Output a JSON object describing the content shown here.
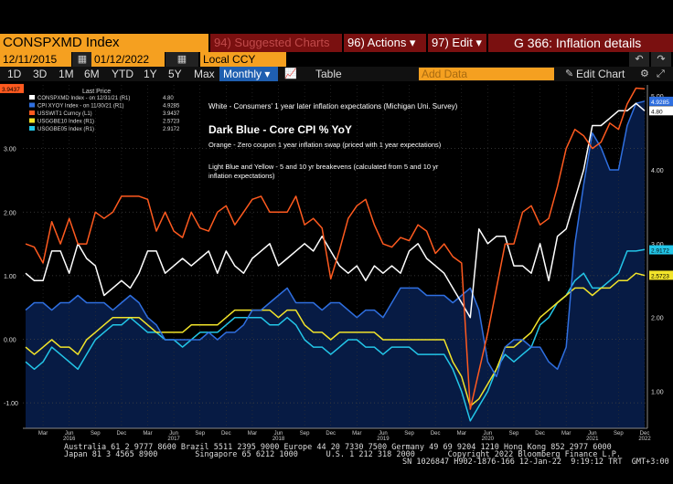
{
  "header": {
    "ticker": "CONSPXMD Index",
    "suggested": "94) Suggested Charts",
    "actions": "96) Actions ▾",
    "edit": "97) Edit ▾",
    "title": "G 366: Inflation details"
  },
  "toolbar": {
    "start_date": "12/11/2015",
    "end_date": "01/12/2022",
    "currency": "Local CCY",
    "ranges": [
      "1D",
      "3D",
      "1M",
      "6M",
      "YTD",
      "1Y",
      "5Y",
      "Max"
    ],
    "frequency": "Monthly ▾",
    "table_label": "Table",
    "add_data_placeholder": "Add Data",
    "edit_chart": "Edit Chart"
  },
  "legend": {
    "header": "Last Price",
    "entries": [
      {
        "name": "CONSPXMD Index - on 12/31/21 (R1)",
        "value": "4.80",
        "color": "#ffffff"
      },
      {
        "name": "CPI XYOY Index - on 11/30/21 (R1)",
        "value": "4.9285",
        "color": "#2f6fe0"
      },
      {
        "name": "USSWIT1 Curncy (L1)",
        "value": "3.9437",
        "color": "#ff5a1f"
      },
      {
        "name": "USGGBE10 Index (R1)",
        "value": "2.5723",
        "color": "#f2e42a"
      },
      {
        "name": "USGGBE05 Index (R1)",
        "value": "2.9172",
        "color": "#23c6e8"
      }
    ]
  },
  "annotations": {
    "white": "White - Consumers' 1 year later inflation expectations (Michigan Uni. Survey)",
    "darkblue": "Dark Blue - Core CPI % YoY",
    "orange": "Orange - Zero coupon 1 year inflation swap (priced with 1 year expectations)",
    "lightblue1": "Light Blue and Yellow - 5 and 10 yr breakevens (calculated from 5 and 10 yr",
    "lightblue2": "inflation expectations)"
  },
  "chart_data": {
    "type": "line",
    "left_axis": {
      "ylim": [
        -1.4,
        4.0
      ],
      "ticks": [
        -1.0,
        0.0,
        1.0,
        2.0,
        3.0
      ],
      "tick_labels": [
        "-1.00",
        "0.00",
        "1.00",
        "2.00",
        "3.00"
      ]
    },
    "right_axis": {
      "ylim": [
        0.5,
        5.15
      ],
      "ticks": [
        1.0,
        2.0,
        3.0,
        4.0,
        5.0
      ],
      "tick_labels": [
        "1.00",
        "2.00",
        "3.00",
        "4.00",
        "5.00"
      ]
    },
    "x_labels": [
      {
        "label": "Mar",
        "m": 3
      },
      {
        "label": "Jun",
        "m": 6
      },
      {
        "label": "Sep",
        "m": 9
      },
      {
        "label": "Dec",
        "m": 12
      },
      {
        "label": "Mar",
        "m": 15
      },
      {
        "label": "Jun",
        "m": 18
      },
      {
        "label": "Sep",
        "m": 21
      },
      {
        "label": "Dec",
        "m": 24
      },
      {
        "label": "Mar",
        "m": 27
      },
      {
        "label": "Jun",
        "m": 30
      },
      {
        "label": "Sep",
        "m": 33
      },
      {
        "label": "Dec",
        "m": 36
      },
      {
        "label": "Mar",
        "m": 39
      },
      {
        "label": "Jun",
        "m": 42
      },
      {
        "label": "Sep",
        "m": 45
      },
      {
        "label": "Dec",
        "m": 48
      },
      {
        "label": "Mar",
        "m": 51
      },
      {
        "label": "Jun",
        "m": 54
      },
      {
        "label": "Sep",
        "m": 57
      },
      {
        "label": "Dec",
        "m": 60
      },
      {
        "label": "Mar",
        "m": 63
      },
      {
        "label": "Jun",
        "m": 66
      },
      {
        "label": "Sep",
        "m": 69
      },
      {
        "label": "Dec",
        "m": 72
      }
    ],
    "year_labels": [
      {
        "label": "2016",
        "m": 6
      },
      {
        "label": "2017",
        "m": 18
      },
      {
        "label": "2018",
        "m": 30
      },
      {
        "label": "2019",
        "m": 42
      },
      {
        "label": "2020",
        "m": 54
      },
      {
        "label": "2021",
        "m": 66
      },
      {
        "label": "2022",
        "m": 73
      }
    ],
    "series": [
      {
        "key": "cpi",
        "axis": "right",
        "color": "#2f6fe0",
        "fill": "#071b44",
        "values": [
          2.1,
          2.2,
          2.2,
          2.1,
          2.2,
          2.2,
          2.3,
          2.2,
          2.2,
          2.2,
          2.1,
          2.2,
          2.3,
          2.2,
          2.0,
          1.9,
          1.7,
          1.7,
          1.7,
          1.7,
          1.7,
          1.8,
          1.7,
          1.8,
          1.8,
          1.9,
          2.1,
          2.1,
          2.2,
          2.3,
          2.4,
          2.2,
          2.2,
          2.2,
          2.1,
          2.2,
          2.2,
          2.1,
          2.0,
          2.1,
          2.1,
          2.0,
          2.2,
          2.4,
          2.4,
          2.4,
          2.3,
          2.3,
          2.3,
          2.2,
          2.3,
          2.4,
          2.1,
          1.4,
          1.2,
          1.6,
          1.7,
          1.7,
          1.6,
          1.6,
          1.4,
          1.3,
          1.6,
          3.0,
          3.8,
          4.5,
          4.3,
          4.0,
          4.0,
          4.6,
          4.9,
          4.93
        ]
      },
      {
        "key": "michigan",
        "axis": "right",
        "color": "#ffffff",
        "values": [
          2.6,
          2.5,
          2.5,
          2.9,
          2.9,
          2.6,
          3.0,
          2.8,
          2.7,
          2.3,
          2.4,
          2.5,
          2.4,
          2.6,
          2.9,
          2.9,
          2.6,
          2.7,
          2.8,
          2.7,
          2.8,
          2.9,
          2.6,
          2.9,
          2.7,
          2.6,
          2.8,
          2.9,
          3.0,
          2.7,
          2.8,
          2.9,
          3.0,
          2.9,
          3.1,
          2.9,
          2.7,
          2.6,
          2.7,
          2.5,
          2.7,
          2.6,
          2.7,
          2.6,
          2.9,
          3.0,
          2.8,
          2.7,
          2.6,
          2.4,
          2.2,
          2.0,
          3.2,
          3.0,
          3.1,
          3.1,
          2.7,
          2.7,
          2.6,
          3.0,
          2.5,
          3.1,
          3.2,
          3.6,
          4.0,
          4.6,
          4.6,
          4.7,
          4.8,
          4.8,
          4.9,
          4.8
        ]
      },
      {
        "key": "swap1y",
        "axis": "left",
        "color": "#ff5a1f",
        "values": [
          1.5,
          1.45,
          1.2,
          1.85,
          1.5,
          1.9,
          1.5,
          1.5,
          2.0,
          1.9,
          2.0,
          2.25,
          2.25,
          2.25,
          2.2,
          1.7,
          2.0,
          1.7,
          1.6,
          2.0,
          1.75,
          1.7,
          2.0,
          2.1,
          1.8,
          2.0,
          2.2,
          2.25,
          2.0,
          2.0,
          2.0,
          2.25,
          1.8,
          1.9,
          1.75,
          0.95,
          1.4,
          1.9,
          2.1,
          2.2,
          1.8,
          1.5,
          1.45,
          1.6,
          1.55,
          1.8,
          1.7,
          1.35,
          1.5,
          1.3,
          1.2,
          -1.1,
          -0.5,
          0.1,
          0.8,
          1.5,
          1.5,
          2.0,
          2.1,
          1.8,
          1.9,
          2.4,
          3.0,
          3.3,
          3.2,
          3.0,
          3.1,
          3.4,
          3.3,
          3.7,
          3.95,
          3.94
        ]
      },
      {
        "key": "be05",
        "axis": "right",
        "color": "#23c6e8",
        "values": [
          1.4,
          1.3,
          1.4,
          1.6,
          1.5,
          1.4,
          1.3,
          1.5,
          1.7,
          1.8,
          1.9,
          1.9,
          2.0,
          1.9,
          1.8,
          1.8,
          1.7,
          1.7,
          1.6,
          1.7,
          1.8,
          1.8,
          1.8,
          1.9,
          2.0,
          2.0,
          2.0,
          2.0,
          1.9,
          1.9,
          2.0,
          1.9,
          1.7,
          1.6,
          1.6,
          1.5,
          1.6,
          1.7,
          1.7,
          1.6,
          1.6,
          1.5,
          1.6,
          1.6,
          1.6,
          1.5,
          1.5,
          1.5,
          1.5,
          1.3,
          1.0,
          0.6,
          0.8,
          1.0,
          1.3,
          1.5,
          1.4,
          1.5,
          1.6,
          1.9,
          2.0,
          2.2,
          2.3,
          2.5,
          2.6,
          2.4,
          2.4,
          2.5,
          2.6,
          2.9,
          2.9,
          2.92
        ]
      },
      {
        "key": "be10",
        "axis": "right",
        "color": "#f2e42a",
        "values": [
          1.6,
          1.5,
          1.6,
          1.7,
          1.6,
          1.6,
          1.5,
          1.7,
          1.8,
          1.9,
          2.0,
          2.0,
          2.0,
          2.0,
          1.9,
          1.8,
          1.8,
          1.8,
          1.8,
          1.9,
          1.9,
          1.9,
          1.9,
          2.0,
          2.1,
          2.1,
          2.1,
          2.1,
          2.1,
          2.0,
          2.1,
          2.1,
          1.9,
          1.8,
          1.8,
          1.7,
          1.8,
          1.8,
          1.8,
          1.8,
          1.8,
          1.7,
          1.7,
          1.7,
          1.7,
          1.7,
          1.7,
          1.7,
          1.7,
          1.4,
          1.2,
          0.8,
          0.9,
          1.1,
          1.3,
          1.6,
          1.6,
          1.7,
          1.8,
          2.0,
          2.1,
          2.2,
          2.3,
          2.4,
          2.4,
          2.3,
          2.4,
          2.4,
          2.5,
          2.5,
          2.6,
          2.57
        ]
      }
    ],
    "last_labels": [
      {
        "text": "3.9437",
        "axis": "left",
        "value": 3.9437,
        "bg": "#ff5a1f",
        "fg": "#000000"
      },
      {
        "text": "4.9285",
        "axis": "right",
        "value": 4.9285,
        "bg": "#2f6fe0",
        "fg": "#ffffff"
      },
      {
        "text": "4.80",
        "axis": "right",
        "value": 4.8,
        "bg": "#ffffff",
        "fg": "#000000"
      },
      {
        "text": "2.9172",
        "axis": "right",
        "value": 2.9172,
        "bg": "#23c6e8",
        "fg": "#000000"
      },
      {
        "text": "2.5723",
        "axis": "right",
        "value": 2.5723,
        "bg": "#f2e42a",
        "fg": "#000000"
      }
    ]
  },
  "footer": {
    "line1": "Australia 61 2 9777 8600 Brazil 5511 2395 9000 Europe 44 20 7330 7500 Germany 49 69 9204 1210 Hong Kong 852 2977 6000",
    "line2": "Japan 81 3 4565 8900        Singapore 65 6212 1000      U.S. 1 212 318 2000       Copyright 2022 Bloomberg Finance L.P.",
    "line3": "SN 1026847 H902-1876-166 12-Jan-22  9:19:12 TRT  GMT+3:00"
  }
}
